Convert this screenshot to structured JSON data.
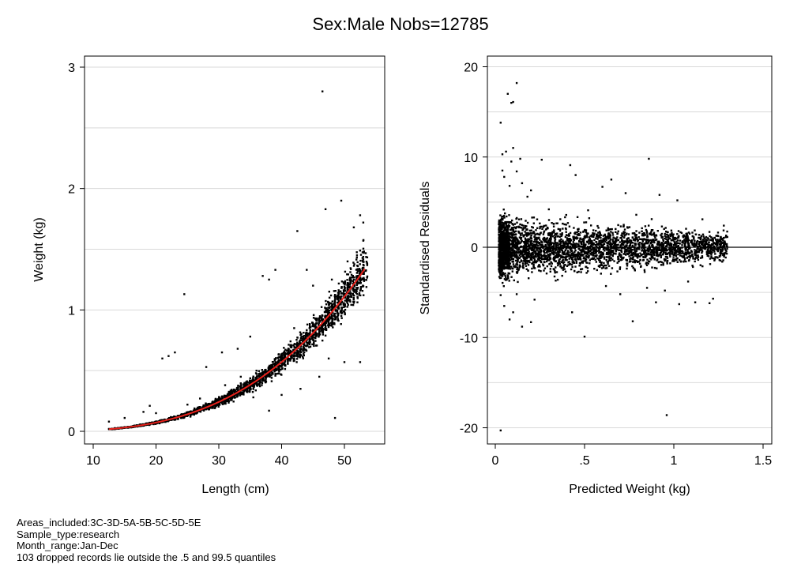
{
  "page_title": "Sex:Male  Nobs=12785",
  "notes": [
    "Areas_included:3C-3D-5A-5B-5C-5D-5E",
    "Sample_type:research",
    "Month_range:Jan-Dec",
    "103 dropped records lie outside the .5 and 99.5 quantiles"
  ],
  "colors": {
    "points": "#000000",
    "fit_line": "#e8211b",
    "grid": "#d9d9d9",
    "zero_line": "#000000"
  },
  "chart_data": [
    {
      "type": "scatter",
      "xlabel": "Length (cm)",
      "ylabel": "Weight (kg)",
      "xlim": [
        10,
        55
      ],
      "ylim": [
        0,
        3
      ],
      "xticks": [
        10,
        20,
        30,
        40,
        50
      ],
      "xtick_labels": [
        "10",
        "20",
        "30",
        "40",
        "50"
      ],
      "yticks": [
        0,
        1,
        2,
        3
      ],
      "ytick_labels": [
        "0",
        "1",
        "2",
        "3"
      ],
      "grid": true,
      "fit_curve": {
        "type": "power",
        "a": 9.6e-06,
        "b": 2.98,
        "x_range": [
          12.5,
          53.3
        ]
      },
      "bulk_band": {
        "x_range": [
          12.5,
          53.5
        ],
        "relative_spread": 0.14
      },
      "points": [
        [
          46.5,
          2.8
        ],
        [
          49.5,
          1.9
        ],
        [
          47,
          1.83
        ],
        [
          42.5,
          1.65
        ],
        [
          52.5,
          1.78
        ],
        [
          53,
          1.72
        ],
        [
          51.5,
          1.68
        ],
        [
          53,
          1.57
        ],
        [
          24.5,
          1.13
        ],
        [
          37,
          1.28
        ],
        [
          39,
          1.33
        ],
        [
          38,
          1.25
        ],
        [
          21,
          0.6
        ],
        [
          22,
          0.62
        ],
        [
          23,
          0.65
        ],
        [
          28,
          0.53
        ],
        [
          30.5,
          0.65
        ],
        [
          33,
          0.68
        ],
        [
          35,
          0.78
        ],
        [
          44,
          1.33
        ],
        [
          45,
          1.2
        ],
        [
          48.5,
          0.11
        ],
        [
          50,
          0.57
        ],
        [
          52.5,
          0.57
        ],
        [
          38,
          0.17
        ],
        [
          35.5,
          0.28
        ],
        [
          40,
          0.3
        ],
        [
          43,
          0.35
        ],
        [
          46,
          0.45
        ],
        [
          47.5,
          0.6
        ],
        [
          12.5,
          0.08
        ],
        [
          15,
          0.11
        ],
        [
          18,
          0.16
        ],
        [
          19,
          0.21
        ],
        [
          20,
          0.15
        ],
        [
          25,
          0.22
        ],
        [
          27,
          0.27
        ],
        [
          31,
          0.38
        ],
        [
          33.5,
          0.45
        ],
        [
          36,
          0.5
        ],
        [
          42,
          0.85
        ],
        [
          48,
          1.25
        ],
        [
          50.5,
          1.4
        ],
        [
          52,
          1.45
        ]
      ]
    },
    {
      "type": "scatter",
      "xlabel": "Predicted Weight (kg)",
      "ylabel": "Standardised Residuals",
      "xlim": [
        -0.06,
        1.56
      ],
      "ylim": [
        -21,
        21
      ],
      "xticks": [
        0,
        0.5,
        1,
        1.5
      ],
      "xtick_labels": [
        "0",
        ".5",
        "1",
        "1.5"
      ],
      "yticks": [
        -20,
        -10,
        0,
        10,
        20
      ],
      "ytick_labels": [
        "-20",
        "-10",
        "0",
        "10",
        "20"
      ],
      "grid": true,
      "reference_line_y": 0,
      "bulk_band": {
        "x_range": [
          0.02,
          1.3
        ],
        "half_width_at_low_x": 3.2,
        "half_width_at_high_x": 1.8
      },
      "points": [
        [
          0.03,
          13.8
        ],
        [
          0.07,
          17
        ],
        [
          0.09,
          16
        ],
        [
          0.1,
          16.1
        ],
        [
          0.12,
          18.2
        ],
        [
          0.04,
          10.3
        ],
        [
          0.06,
          10.6
        ],
        [
          0.1,
          11
        ],
        [
          0.04,
          8.5
        ],
        [
          0.05,
          7.8
        ],
        [
          0.09,
          9.5
        ],
        [
          0.08,
          6.8
        ],
        [
          0.12,
          8.4
        ],
        [
          0.15,
          7.1
        ],
        [
          0.2,
          6.3
        ],
        [
          0.14,
          9.8
        ],
        [
          0.18,
          5.6
        ],
        [
          0.26,
          9.7
        ],
        [
          0.42,
          9.1
        ],
        [
          0.45,
          8
        ],
        [
          0.65,
          7.5
        ],
        [
          0.86,
          9.8
        ],
        [
          0.6,
          6.7
        ],
        [
          0.73,
          6
        ],
        [
          0.92,
          5.8
        ],
        [
          1.02,
          5.2
        ],
        [
          0.03,
          -5.3
        ],
        [
          0.05,
          -6.5
        ],
        [
          0.08,
          -8
        ],
        [
          0.1,
          -7.2
        ],
        [
          0.15,
          -8.8
        ],
        [
          0.2,
          -8.3
        ],
        [
          0.22,
          -5.8
        ],
        [
          0.12,
          -5.2
        ],
        [
          0.43,
          -7.2
        ],
        [
          0.5,
          -9.9
        ],
        [
          0.77,
          -8.2
        ],
        [
          0.85,
          -4.5
        ],
        [
          0.9,
          -6.1
        ],
        [
          0.95,
          -4.8
        ],
        [
          1.03,
          -6.3
        ],
        [
          1.12,
          -6.1
        ],
        [
          1.2,
          -6.2
        ],
        [
          1.22,
          -5.7
        ],
        [
          0.96,
          -18.6
        ],
        [
          0.03,
          -20.3
        ],
        [
          0.35,
          -3.6
        ],
        [
          0.62,
          -4.3
        ],
        [
          0.7,
          -5.2
        ],
        [
          1.08,
          -3.8
        ],
        [
          0.3,
          4.2
        ],
        [
          0.52,
          4.1
        ],
        [
          0.79,
          3.6
        ],
        [
          1.16,
          3.1
        ],
        [
          1.28,
          2.4
        ]
      ]
    }
  ]
}
